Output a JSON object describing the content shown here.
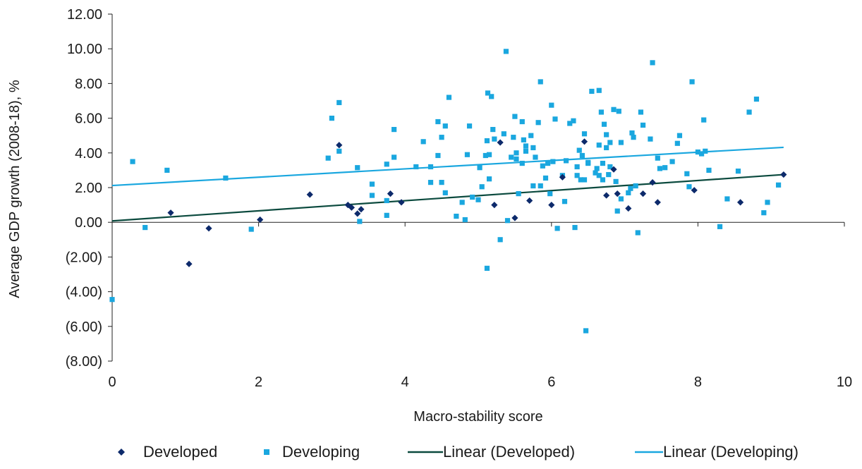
{
  "chart_data": {
    "type": "scatter",
    "xlabel": "Macro-stability score",
    "ylabel": "Average GDP growth (2008-18), %",
    "xlim": [
      0,
      10
    ],
    "ylim": [
      -8,
      12
    ],
    "x_ticks": [
      0,
      2,
      4,
      6,
      8,
      10
    ],
    "x_tick_labels": [
      "0",
      "2",
      "4",
      "6",
      "8",
      "10"
    ],
    "y_ticks": [
      12,
      10,
      8,
      6,
      4,
      2,
      0,
      -2,
      -4,
      -6,
      -8
    ],
    "y_tick_labels": [
      "12.00",
      "10.00",
      "8.00",
      "6.00",
      "4.00",
      "2.00",
      "0.00",
      "(2.00)",
      "(4.00)",
      "(6.00)",
      "(8.00)"
    ],
    "grid": false,
    "legend_position": "bottom",
    "series": [
      {
        "name": "Developed",
        "marker": "diamond",
        "color": "#0d2a6b",
        "points": [
          [
            0.8,
            0.55
          ],
          [
            1.05,
            -2.4
          ],
          [
            1.32,
            -0.35
          ],
          [
            2.02,
            0.15
          ],
          [
            2.7,
            1.6
          ],
          [
            3.1,
            4.45
          ],
          [
            3.22,
            1.0
          ],
          [
            3.27,
            0.85
          ],
          [
            3.35,
            0.5
          ],
          [
            3.4,
            0.75
          ],
          [
            3.8,
            1.65
          ],
          [
            3.95,
            1.15
          ],
          [
            5.22,
            1.0
          ],
          [
            5.3,
            4.6
          ],
          [
            5.5,
            0.25
          ],
          [
            5.7,
            1.25
          ],
          [
            6.0,
            1.0
          ],
          [
            6.15,
            2.6
          ],
          [
            6.45,
            4.65
          ],
          [
            6.75,
            1.55
          ],
          [
            6.85,
            3.05
          ],
          [
            6.9,
            1.65
          ],
          [
            7.05,
            0.8
          ],
          [
            7.25,
            1.65
          ],
          [
            7.38,
            2.3
          ],
          [
            7.45,
            1.15
          ],
          [
            7.95,
            1.85
          ],
          [
            8.58,
            1.15
          ],
          [
            9.17,
            2.75
          ]
        ]
      },
      {
        "name": "Developing",
        "marker": "square",
        "color": "#1aa7df",
        "points": [
          [
            0.0,
            -4.45
          ],
          [
            0.28,
            3.5
          ],
          [
            0.45,
            -0.3
          ],
          [
            0.75,
            3.0
          ],
          [
            1.55,
            2.55
          ],
          [
            1.9,
            -0.4
          ],
          [
            2.95,
            3.7
          ],
          [
            3.0,
            6.0
          ],
          [
            3.1,
            6.9
          ],
          [
            3.1,
            4.1
          ],
          [
            3.35,
            3.15
          ],
          [
            3.38,
            0.05
          ],
          [
            3.55,
            2.2
          ],
          [
            3.55,
            1.55
          ],
          [
            3.75,
            1.25
          ],
          [
            3.75,
            0.4
          ],
          [
            3.75,
            3.35
          ],
          [
            3.85,
            3.75
          ],
          [
            3.85,
            5.35
          ],
          [
            4.15,
            3.2
          ],
          [
            4.25,
            4.65
          ],
          [
            4.35,
            2.3
          ],
          [
            4.35,
            3.2
          ],
          [
            4.45,
            5.8
          ],
          [
            4.45,
            3.85
          ],
          [
            4.5,
            4.9
          ],
          [
            4.5,
            2.3
          ],
          [
            4.55,
            1.7
          ],
          [
            4.55,
            5.55
          ],
          [
            4.6,
            7.2
          ],
          [
            4.7,
            0.35
          ],
          [
            4.78,
            1.15
          ],
          [
            4.82,
            0.15
          ],
          [
            4.85,
            3.9
          ],
          [
            4.88,
            5.55
          ],
          [
            4.92,
            1.45
          ],
          [
            5.0,
            1.3
          ],
          [
            5.02,
            3.15
          ],
          [
            5.05,
            2.05
          ],
          [
            5.1,
            3.85
          ],
          [
            5.12,
            -2.65
          ],
          [
            5.12,
            4.7
          ],
          [
            5.13,
            7.45
          ],
          [
            5.15,
            2.5
          ],
          [
            5.15,
            3.9
          ],
          [
            5.18,
            7.25
          ],
          [
            5.2,
            5.35
          ],
          [
            5.22,
            4.8
          ],
          [
            5.3,
            -1.0
          ],
          [
            5.35,
            5.1
          ],
          [
            5.38,
            9.85
          ],
          [
            5.4,
            0.1
          ],
          [
            5.45,
            3.75
          ],
          [
            5.48,
            4.9
          ],
          [
            5.5,
            6.1
          ],
          [
            5.52,
            3.65
          ],
          [
            5.52,
            4.0
          ],
          [
            5.55,
            1.65
          ],
          [
            5.6,
            3.4
          ],
          [
            5.6,
            5.8
          ],
          [
            5.62,
            4.75
          ],
          [
            5.65,
            4.4
          ],
          [
            5.65,
            4.1
          ],
          [
            5.72,
            5.0
          ],
          [
            5.75,
            2.1
          ],
          [
            5.75,
            4.3
          ],
          [
            5.78,
            3.75
          ],
          [
            5.82,
            5.75
          ],
          [
            5.85,
            8.1
          ],
          [
            5.85,
            2.1
          ],
          [
            5.88,
            3.25
          ],
          [
            5.92,
            2.55
          ],
          [
            5.95,
            3.4
          ],
          [
            5.98,
            1.65
          ],
          [
            6.0,
            6.75
          ],
          [
            6.02,
            3.5
          ],
          [
            6.05,
            5.95
          ],
          [
            6.08,
            -0.35
          ],
          [
            6.15,
            2.7
          ],
          [
            6.18,
            1.2
          ],
          [
            6.2,
            3.55
          ],
          [
            6.25,
            5.7
          ],
          [
            6.3,
            5.85
          ],
          [
            6.32,
            -0.3
          ],
          [
            6.35,
            2.7
          ],
          [
            6.35,
            3.2
          ],
          [
            6.38,
            4.15
          ],
          [
            6.4,
            2.45
          ],
          [
            6.42,
            3.85
          ],
          [
            6.45,
            5.1
          ],
          [
            6.45,
            2.45
          ],
          [
            6.47,
            -6.25
          ],
          [
            6.5,
            3.45
          ],
          [
            6.5,
            3.4
          ],
          [
            6.55,
            7.55
          ],
          [
            6.6,
            2.85
          ],
          [
            6.62,
            3.1
          ],
          [
            6.65,
            7.6
          ],
          [
            6.65,
            2.7
          ],
          [
            6.65,
            4.45
          ],
          [
            6.68,
            6.35
          ],
          [
            6.7,
            2.45
          ],
          [
            6.7,
            3.4
          ],
          [
            6.72,
            5.65
          ],
          [
            6.75,
            4.3
          ],
          [
            6.75,
            5.05
          ],
          [
            6.78,
            2.75
          ],
          [
            6.8,
            3.2
          ],
          [
            6.8,
            4.6
          ],
          [
            6.85,
            6.5
          ],
          [
            6.88,
            2.35
          ],
          [
            6.9,
            0.65
          ],
          [
            6.92,
            6.4
          ],
          [
            6.95,
            1.35
          ],
          [
            6.95,
            4.6
          ],
          [
            7.05,
            1.7
          ],
          [
            7.08,
            1.95
          ],
          [
            7.1,
            5.15
          ],
          [
            7.12,
            4.9
          ],
          [
            7.15,
            2.1
          ],
          [
            7.18,
            -0.6
          ],
          [
            7.22,
            6.35
          ],
          [
            7.25,
            5.6
          ],
          [
            7.35,
            4.8
          ],
          [
            7.38,
            9.2
          ],
          [
            7.45,
            3.7
          ],
          [
            7.48,
            3.1
          ],
          [
            7.55,
            3.15
          ],
          [
            7.65,
            3.5
          ],
          [
            7.72,
            4.55
          ],
          [
            7.75,
            5.0
          ],
          [
            7.85,
            2.8
          ],
          [
            7.88,
            2.05
          ],
          [
            7.92,
            8.1
          ],
          [
            8.0,
            4.05
          ],
          [
            8.05,
            3.95
          ],
          [
            8.08,
            5.9
          ],
          [
            8.1,
            4.1
          ],
          [
            8.15,
            3.0
          ],
          [
            8.3,
            -0.25
          ],
          [
            8.4,
            1.35
          ],
          [
            8.55,
            2.95
          ],
          [
            8.7,
            6.35
          ],
          [
            8.8,
            7.1
          ],
          [
            8.9,
            0.55
          ],
          [
            8.95,
            1.15
          ],
          [
            9.1,
            2.15
          ]
        ]
      }
    ],
    "trendlines": [
      {
        "name": "Linear (Developed)",
        "color": "#0b4a3e",
        "x": [
          0.0,
          9.17
        ],
        "y": [
          0.08,
          2.75
        ]
      },
      {
        "name": "Linear (Developing)",
        "color": "#1aa7df",
        "x": [
          0.0,
          9.17
        ],
        "y": [
          2.12,
          4.32
        ]
      }
    ],
    "legend": [
      {
        "label": "Developed",
        "kind": "marker",
        "marker": "diamond",
        "color": "#0d2a6b"
      },
      {
        "label": "Developing",
        "kind": "marker",
        "marker": "square",
        "color": "#1aa7df"
      },
      {
        "label": "Linear (Developed)",
        "kind": "line",
        "color": "#0b4a3e"
      },
      {
        "label": "Linear (Developing)",
        "kind": "line",
        "color": "#1aa7df"
      }
    ]
  }
}
